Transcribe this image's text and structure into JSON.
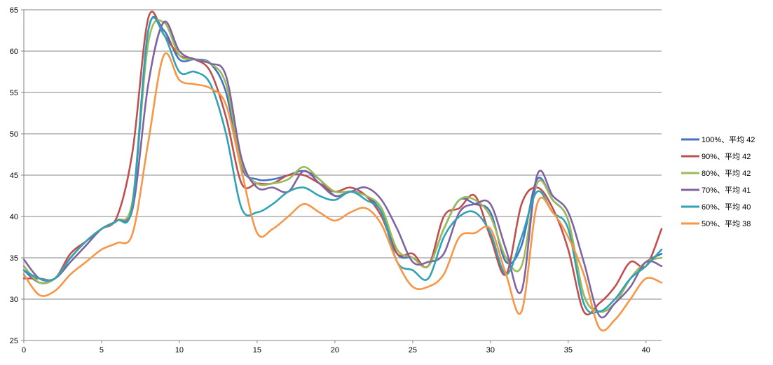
{
  "chart_data": {
    "type": "line",
    "title": "",
    "xlabel": "",
    "ylabel": "",
    "xlim": [
      0,
      41
    ],
    "ylim": [
      25,
      65
    ],
    "x_ticks": [
      0,
      5,
      10,
      15,
      20,
      25,
      30,
      35,
      40
    ],
    "y_ticks": [
      25,
      30,
      35,
      40,
      45,
      50,
      55,
      60,
      65
    ],
    "grid": "horizontal",
    "legend_position": "right",
    "x": [
      0,
      1,
      2,
      3,
      4,
      5,
      6,
      7,
      8,
      9,
      10,
      11,
      12,
      13,
      14,
      15,
      16,
      17,
      18,
      19,
      20,
      21,
      22,
      23,
      24,
      25,
      26,
      27,
      28,
      29,
      30,
      31,
      32,
      33,
      34,
      35,
      36,
      37,
      38,
      39,
      40,
      41
    ],
    "series": [
      {
        "name": "100%、平均 42",
        "color": "#4472c4",
        "values": [
          33.5,
          32.0,
          32.5,
          35.0,
          37.0,
          38.5,
          39.5,
          42.0,
          62.5,
          62.5,
          59.0,
          59.0,
          58.5,
          55.0,
          46.0,
          44.5,
          44.5,
          45.0,
          45.5,
          44.5,
          42.5,
          43.0,
          42.5,
          40.5,
          35.5,
          35.0,
          34.0,
          38.5,
          42.0,
          41.5,
          40.5,
          34.5,
          36.5,
          44.5,
          42.0,
          39.5,
          30.5,
          28.5,
          29.5,
          32.5,
          34.5,
          35.5
        ]
      },
      {
        "name": "90%、平均 42",
        "color": "#c0504d",
        "values": [
          32.5,
          32.5,
          32.5,
          35.5,
          37.0,
          38.5,
          40.0,
          48.0,
          64.0,
          62.0,
          59.5,
          59.0,
          57.5,
          52.0,
          44.0,
          44.0,
          44.0,
          45.0,
          45.0,
          44.0,
          43.0,
          43.5,
          42.5,
          40.0,
          35.5,
          35.5,
          34.0,
          40.0,
          41.0,
          42.5,
          37.5,
          33.0,
          41.5,
          43.5,
          41.0,
          36.0,
          28.5,
          29.5,
          31.5,
          34.5,
          34.0,
          38.5
        ]
      },
      {
        "name": "80%、平均 42",
        "color": "#9bbb59",
        "values": [
          34.0,
          32.0,
          32.5,
          35.0,
          37.0,
          38.5,
          39.5,
          42.0,
          61.0,
          63.5,
          59.5,
          59.0,
          58.5,
          56.0,
          46.5,
          44.0,
          44.0,
          44.5,
          46.0,
          44.5,
          43.0,
          43.0,
          42.5,
          41.0,
          36.0,
          35.0,
          34.0,
          38.5,
          42.0,
          42.0,
          40.0,
          35.0,
          34.0,
          44.0,
          42.0,
          39.5,
          30.5,
          28.5,
          29.5,
          32.5,
          34.5,
          35.0
        ]
      },
      {
        "name": "70%、平均 41",
        "color": "#8064a2",
        "values": [
          34.8,
          32.5,
          32.5,
          34.5,
          36.5,
          38.5,
          39.5,
          41.0,
          56.0,
          63.5,
          60.0,
          59.0,
          58.5,
          57.0,
          47.0,
          43.5,
          43.5,
          43.0,
          45.5,
          44.0,
          42.5,
          43.0,
          43.5,
          42.0,
          38.5,
          34.5,
          34.5,
          35.5,
          40.5,
          41.5,
          41.5,
          36.0,
          31.0,
          45.0,
          42.5,
          40.5,
          34.5,
          28.0,
          29.5,
          31.5,
          34.5,
          34.0
        ]
      },
      {
        "name": "60%、平均 40",
        "color": "#31a2b5",
        "values": [
          33.5,
          32.5,
          32.5,
          35.0,
          37.0,
          38.5,
          39.5,
          41.5,
          62.5,
          62.0,
          57.5,
          57.5,
          56.0,
          50.0,
          41.0,
          40.5,
          41.5,
          43.0,
          43.5,
          42.5,
          42.0,
          43.0,
          42.0,
          40.5,
          34.5,
          33.5,
          32.5,
          37.5,
          40.0,
          40.5,
          38.0,
          33.0,
          37.5,
          43.0,
          40.5,
          38.5,
          29.5,
          28.5,
          30.0,
          32.5,
          34.0,
          36.0
        ]
      },
      {
        "name": "50%、平均 38",
        "color": "#f79646",
        "values": [
          33.0,
          30.5,
          31.0,
          33.0,
          34.5,
          36.0,
          36.8,
          38.0,
          49.0,
          59.5,
          56.5,
          56.0,
          55.5,
          53.5,
          45.5,
          38.0,
          38.5,
          40.0,
          41.5,
          40.5,
          39.5,
          40.5,
          41.0,
          39.0,
          34.5,
          31.5,
          31.5,
          33.0,
          37.5,
          38.0,
          38.5,
          33.0,
          28.5,
          41.5,
          40.5,
          37.5,
          33.0,
          26.5,
          27.5,
          30.0,
          32.5,
          32.0
        ]
      }
    ]
  }
}
